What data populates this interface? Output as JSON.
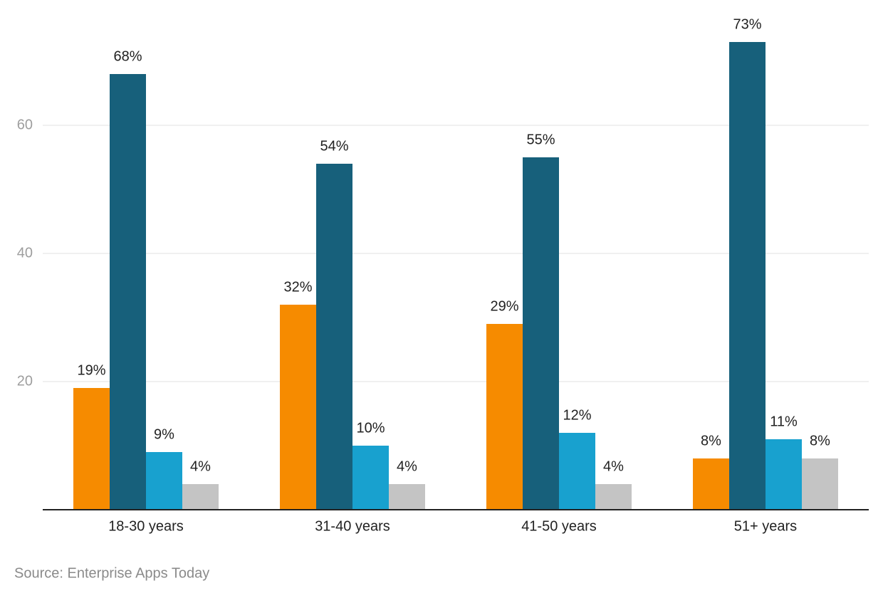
{
  "chart_data": {
    "type": "bar",
    "categories": [
      "18-30 years",
      "31-40 years",
      "41-50 years",
      "51+ years"
    ],
    "series": [
      {
        "color": "#f68b00",
        "values": [
          19,
          32,
          29,
          8
        ],
        "value_labels": [
          "19%",
          "32%",
          "29%",
          "8%"
        ]
      },
      {
        "color": "#17607b",
        "values": [
          68,
          54,
          55,
          73
        ],
        "value_labels": [
          "68%",
          "54%",
          "55%",
          "73%"
        ]
      },
      {
        "color": "#18a1cf",
        "values": [
          9,
          10,
          12,
          11
        ],
        "value_labels": [
          "9%",
          "10%",
          "12%",
          "11%"
        ]
      },
      {
        "color": "#c4c4c4",
        "values": [
          4,
          4,
          4,
          8
        ],
        "value_labels": [
          "4%",
          "4%",
          "4%",
          "8%"
        ]
      }
    ],
    "ylim": [
      0,
      78
    ],
    "yticks": [
      20,
      40,
      60
    ],
    "grid": true,
    "source": "Source: Enterprise Apps Today"
  }
}
